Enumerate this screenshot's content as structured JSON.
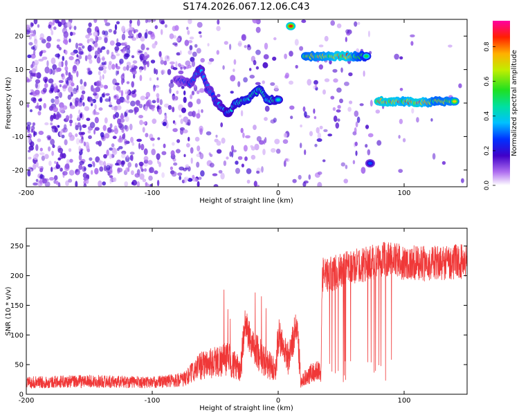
{
  "title": "S174.2026.067.12.06.C43",
  "chart_data": [
    {
      "type": "heatmap",
      "name": "spectrogram",
      "xlabel": "Height of straight line (km)",
      "ylabel": "Frequency (Hz)",
      "xlim": [
        -200,
        150
      ],
      "ylim": [
        -25,
        25
      ],
      "xticks": [
        -200,
        -100,
        0,
        100
      ],
      "yticks": [
        -20,
        -10,
        0,
        10,
        20
      ],
      "colorbar": {
        "label": "Normalized spectral amplitude",
        "range": [
          0.0,
          0.95
        ],
        "ticks": [
          "0.0",
          "0.2",
          "0.4",
          "0.6",
          "0.8"
        ],
        "tick_values": [
          0.0,
          0.2,
          0.4,
          0.6,
          0.8
        ]
      },
      "ridge": [
        {
          "x": -80,
          "y": 7,
          "v": 0.22
        },
        {
          "x": -70,
          "y": 6,
          "v": 0.3
        },
        {
          "x": -62,
          "y": 10,
          "v": 0.35
        },
        {
          "x": -55,
          "y": 4,
          "v": 0.3
        },
        {
          "x": -48,
          "y": 0,
          "v": 0.35
        },
        {
          "x": -40,
          "y": -3,
          "v": 0.4
        },
        {
          "x": -33,
          "y": 0,
          "v": 0.45
        },
        {
          "x": -25,
          "y": 1,
          "v": 0.5
        },
        {
          "x": -15,
          "y": 4,
          "v": 0.5
        },
        {
          "x": -8,
          "y": 1,
          "v": 0.5
        },
        {
          "x": 0,
          "y": 1,
          "v": 0.45
        },
        {
          "x": 10,
          "y": 23,
          "v": 0.9
        },
        {
          "x": 22,
          "y": 14,
          "v": 0.7
        },
        {
          "x": 32,
          "y": 14,
          "v": 0.75
        },
        {
          "x": 42,
          "y": 14,
          "v": 0.8
        },
        {
          "x": 52,
          "y": 14,
          "v": 0.92
        },
        {
          "x": 62,
          "y": 14,
          "v": 0.7
        },
        {
          "x": 70,
          "y": 14,
          "v": 0.55
        },
        {
          "x": 73,
          "y": -18,
          "v": 0.3
        },
        {
          "x": 80,
          "y": 0.5,
          "v": 0.9
        },
        {
          "x": 90,
          "y": 0.5,
          "v": 0.9
        },
        {
          "x": 100,
          "y": 0.5,
          "v": 0.8
        },
        {
          "x": 110,
          "y": 0,
          "v": 0.92
        },
        {
          "x": 125,
          "y": 0.5,
          "v": 0.7
        },
        {
          "x": 140,
          "y": 0.5,
          "v": 0.75
        }
      ]
    },
    {
      "type": "line",
      "name": "snr",
      "xlabel": "Height of straight line (km)",
      "ylabel": "SNR (10 * v/v)",
      "xlim": [
        -200,
        150
      ],
      "ylim": [
        0,
        280
      ],
      "xticks": [
        -200,
        -100,
        0,
        100
      ],
      "yticks": [
        0,
        50,
        100,
        150,
        200,
        250
      ],
      "color": "#f03838",
      "series": [
        {
          "name": "SNR",
          "x": [
            -200,
            -150,
            -100,
            -75,
            -60,
            -40,
            -30,
            -26,
            -20,
            -10,
            -2,
            0,
            8,
            15,
            18,
            25,
            34,
            35,
            45,
            60,
            80,
            88,
            100,
            120,
            150
          ],
          "y": [
            20,
            22,
            20,
            25,
            50,
            60,
            40,
            120,
            80,
            55,
            40,
            100,
            60,
            120,
            20,
            35,
            40,
            200,
            205,
            215,
            225,
            230,
            222,
            220,
            225
          ]
        }
      ]
    }
  ]
}
